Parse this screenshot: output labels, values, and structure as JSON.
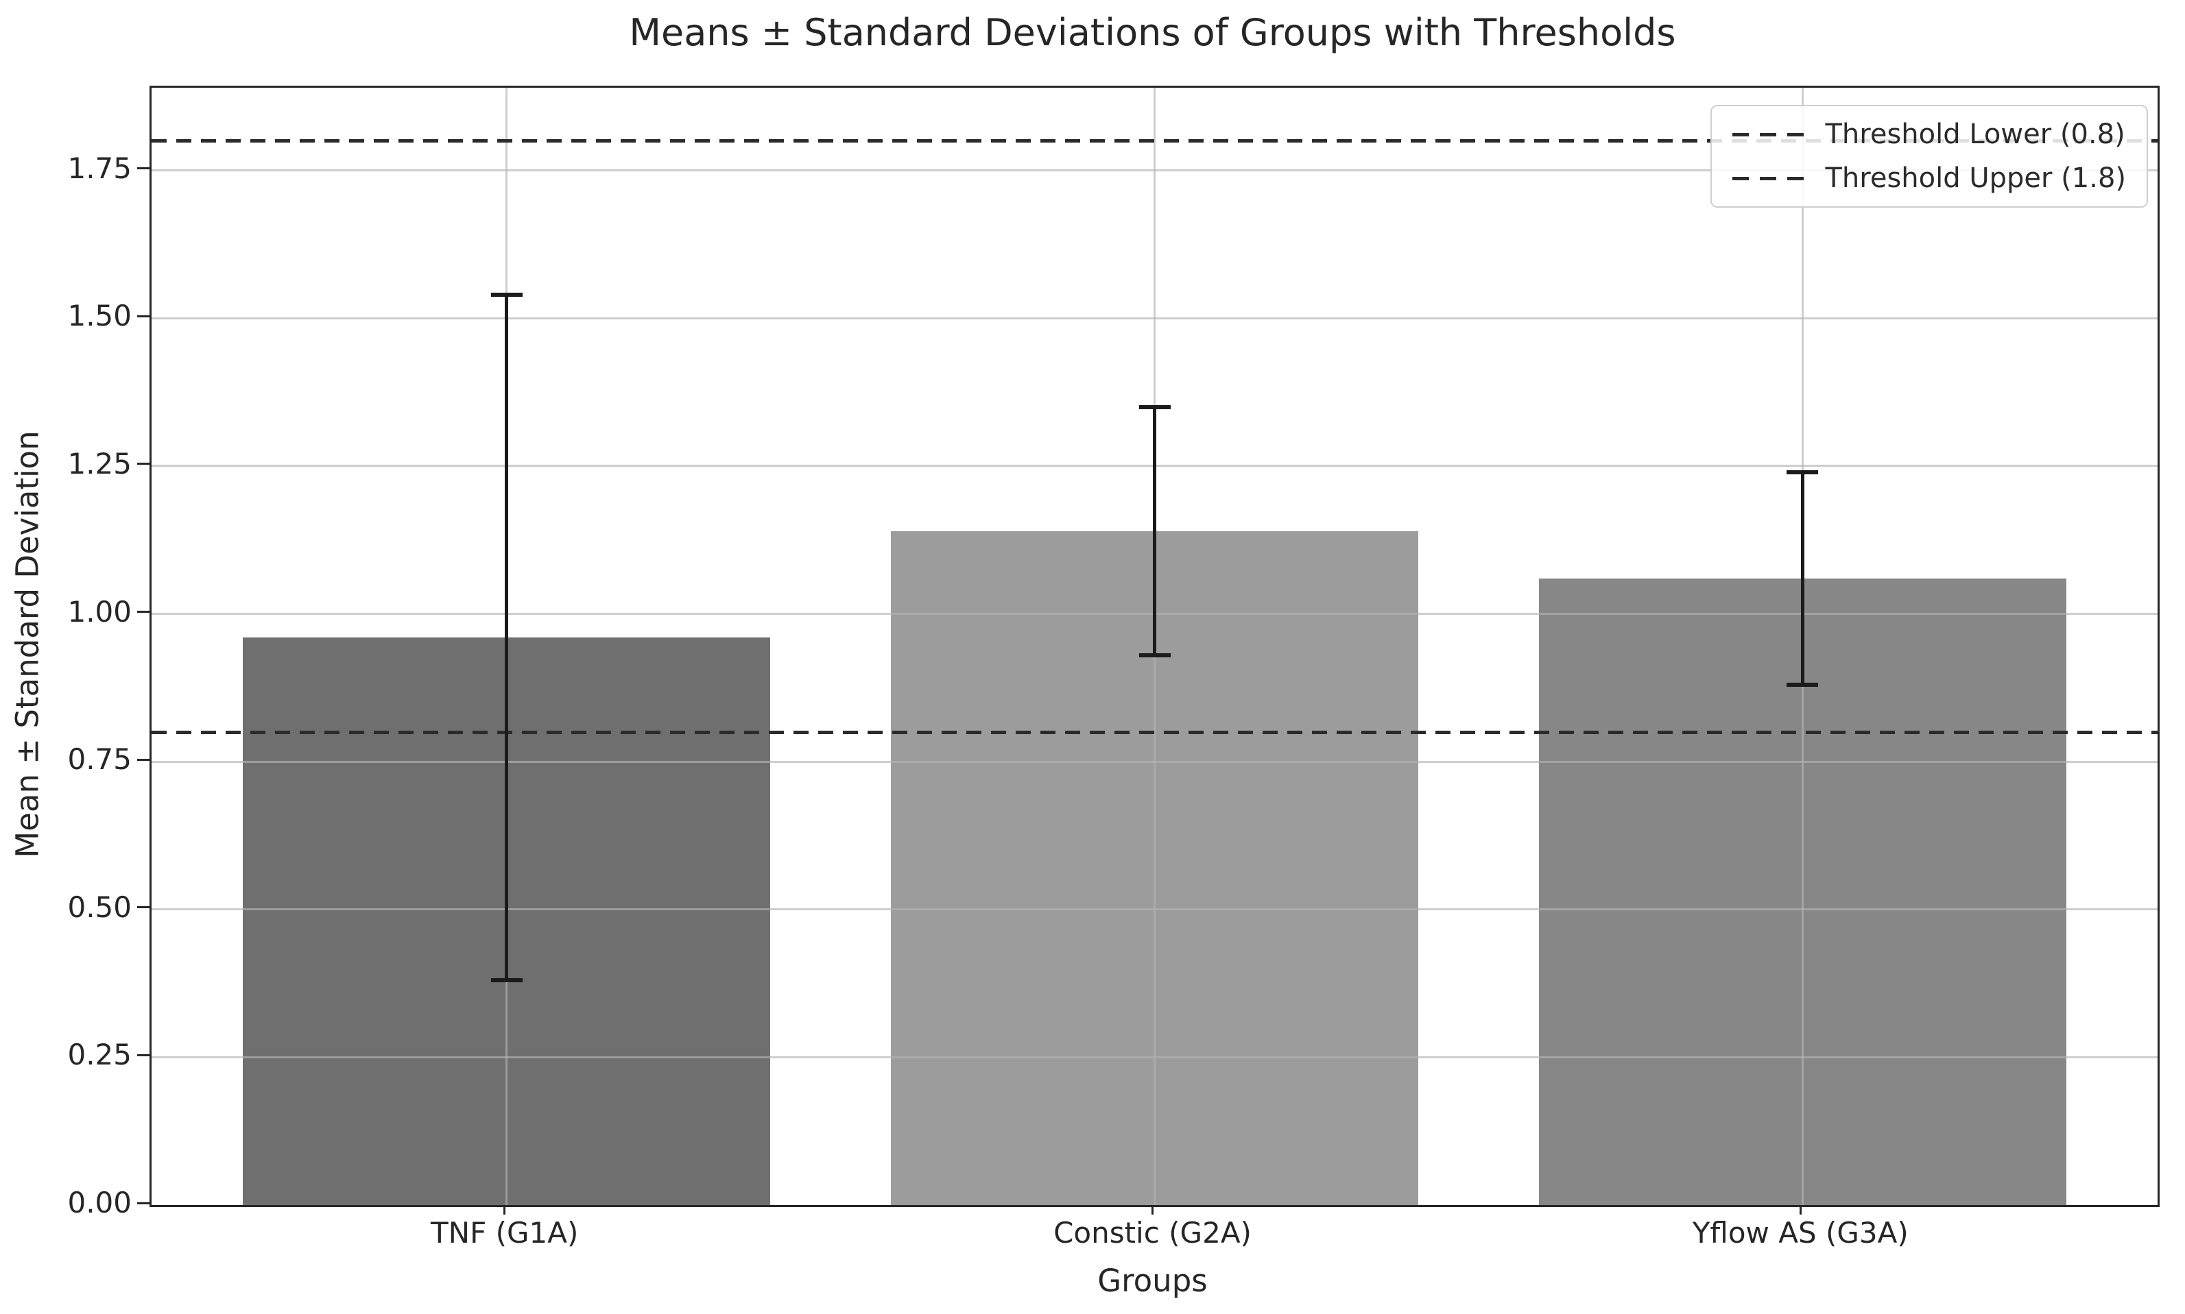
{
  "chart_data": {
    "type": "bar",
    "title": "Means ± Standard Deviations of Groups with Thresholds",
    "xlabel": "Groups",
    "ylabel": "Mean ± Standard Deviation",
    "categories": [
      "TNF (G1A)",
      "Constic (G2A)",
      "Yflow AS (G3A)"
    ],
    "series": [
      {
        "name": "Mean",
        "values": [
          0.96,
          1.14,
          1.06
        ]
      },
      {
        "name": "Standard Deviation",
        "values": [
          0.58,
          0.21,
          0.18
        ]
      }
    ],
    "bar_colors": [
      "#6f6f6f",
      "#9c9c9c",
      "#878787"
    ],
    "error_bar_color": "#1b1b1b",
    "thresholds": [
      {
        "label": "Threshold Lower (0.8)",
        "value": 0.8
      },
      {
        "label": "Threshold Upper (1.8)",
        "value": 1.8
      }
    ],
    "threshold_line_color": "#2b2b2b",
    "ylim": [
      0,
      1.89
    ],
    "yticks": [
      {
        "value": 0.0,
        "label": "0.00"
      },
      {
        "value": 0.25,
        "label": "0.25"
      },
      {
        "value": 0.5,
        "label": "0.50"
      },
      {
        "value": 0.75,
        "label": "0.75"
      },
      {
        "value": 1.0,
        "label": "1.00"
      },
      {
        "value": 1.25,
        "label": "1.25"
      },
      {
        "value": 1.5,
        "label": "1.50"
      },
      {
        "value": 1.75,
        "label": "1.75"
      }
    ],
    "grid": true,
    "grid_color": "#b4b4b4",
    "legend_position": "upper right"
  }
}
